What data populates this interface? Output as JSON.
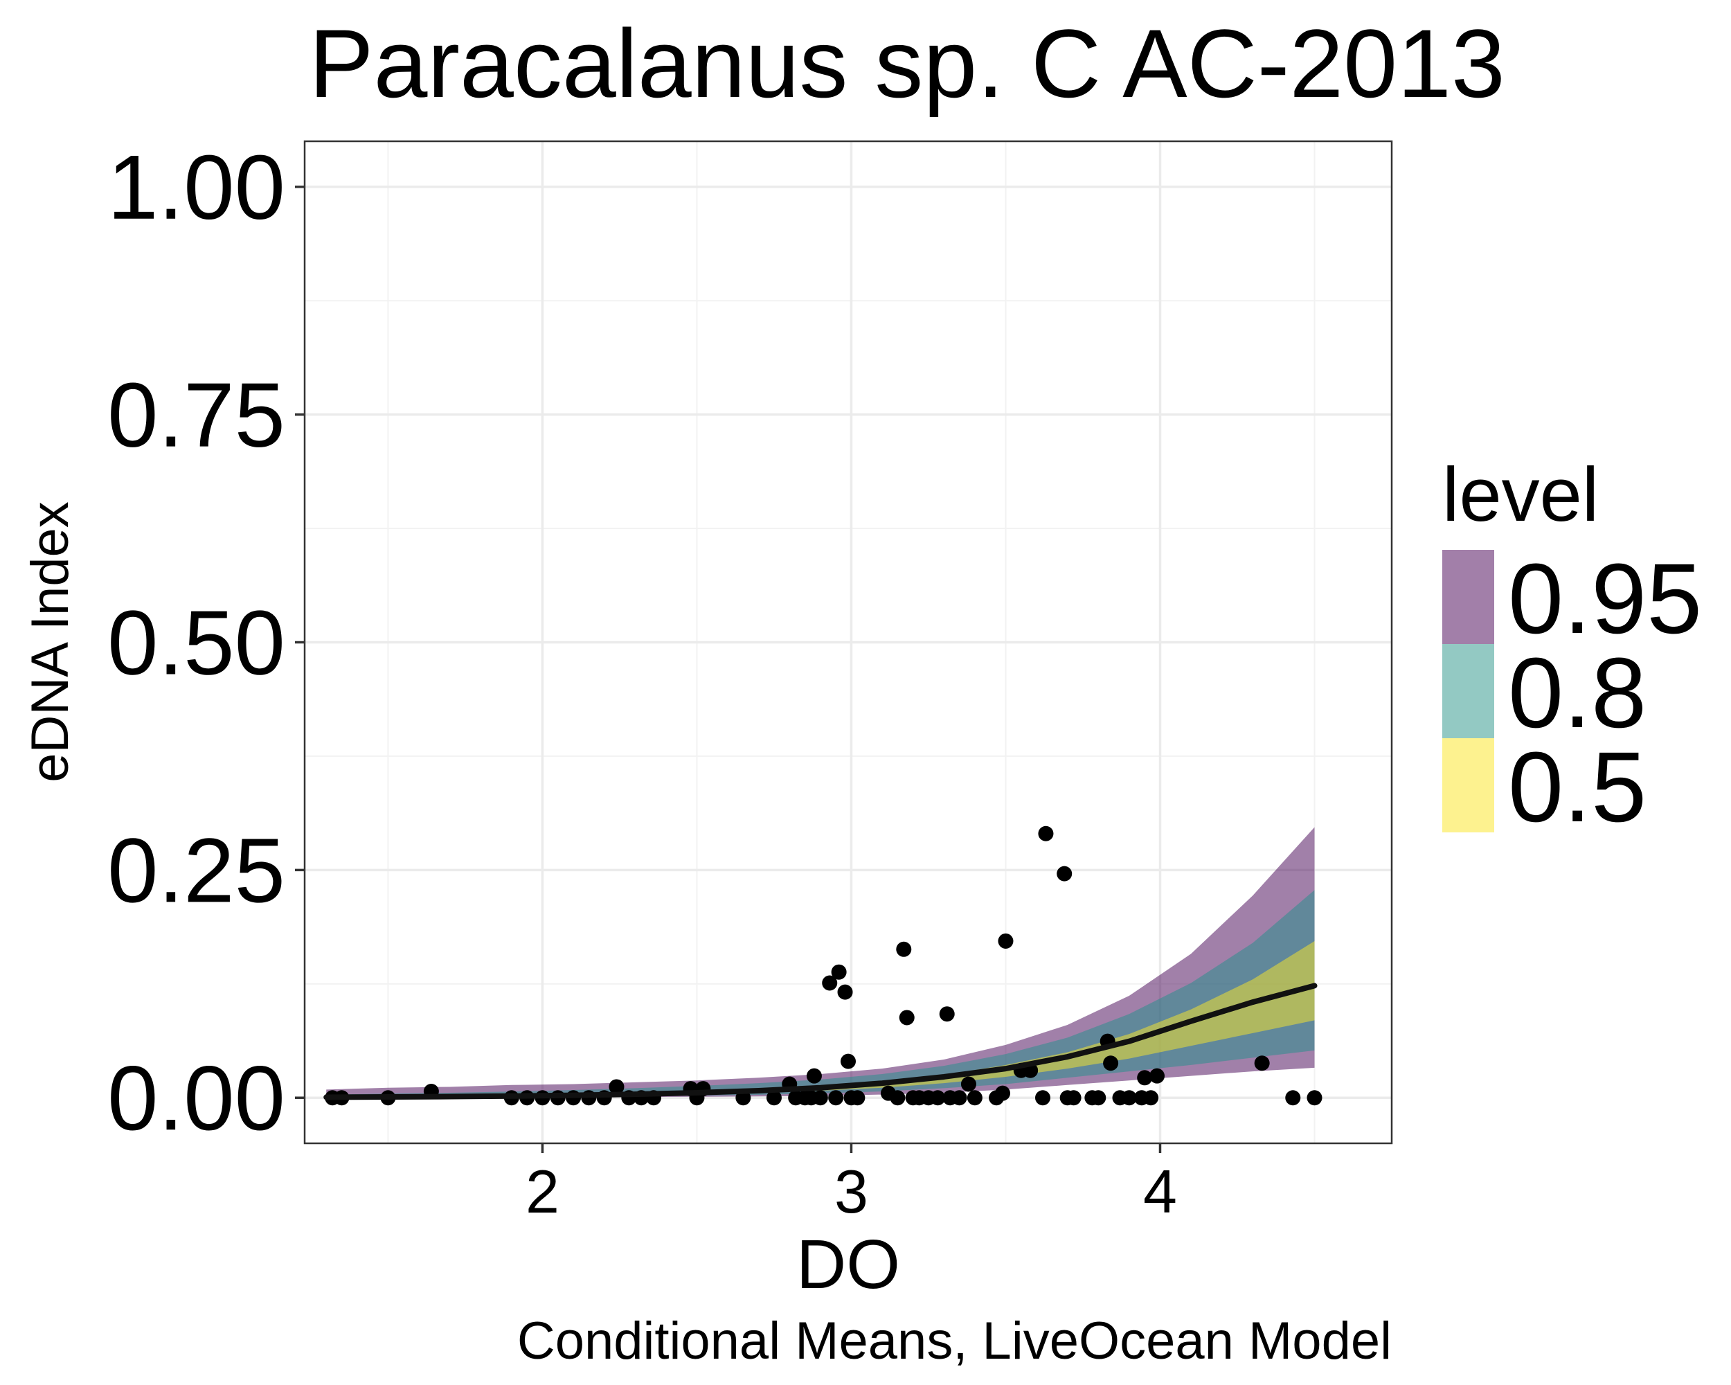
{
  "chart_data": {
    "type": "line",
    "title": "Paracalanus sp. C AC-2013",
    "xlabel": "DO",
    "ylabel": "eDNA Index",
    "caption": "Conditional Means, LiveOcean Model",
    "xlim": [
      1.23,
      4.75
    ],
    "ylim": [
      -0.05,
      1.05
    ],
    "x_ticks": [
      2,
      3,
      4
    ],
    "x_tick_labels": [
      "2",
      "3",
      "4"
    ],
    "y_ticks": [
      0,
      0.25,
      0.5,
      0.75,
      1.0
    ],
    "y_tick_labels": [
      "0.00",
      "0.25",
      "0.50",
      "0.75",
      "1.00"
    ],
    "grid": true,
    "legend": {
      "title": "level",
      "position": "right",
      "items": [
        {
          "label": "0.95",
          "color": "#a27fa9"
        },
        {
          "label": "0.8",
          "color": "#93c9c3"
        },
        {
          "label": "0.5",
          "color": "#fdf28f"
        }
      ]
    },
    "colors": {
      "band_95": "#440154",
      "band_80": "#21908c",
      "band_50": "#fde725",
      "line": "#111111",
      "points": "#000000"
    },
    "mean_line": {
      "x": [
        1.3,
        1.5,
        1.7,
        1.9,
        2.1,
        2.3,
        2.5,
        2.7,
        2.9,
        3.1,
        3.3,
        3.5,
        3.7,
        3.9,
        4.1,
        4.3,
        4.5
      ],
      "y": [
        0.0006,
        0.0009,
        0.0013,
        0.0019,
        0.0027,
        0.0039,
        0.0055,
        0.0078,
        0.011,
        0.016,
        0.023,
        0.032,
        0.045,
        0.062,
        0.084,
        0.105,
        0.123
      ]
    },
    "intervals": [
      {
        "level": "0.95",
        "lower": [
          0.0,
          0.0001,
          0.0002,
          0.0003,
          0.0005,
          0.0008,
          0.0011,
          0.0015,
          0.0021,
          0.0035,
          0.0055,
          0.009,
          0.014,
          0.019,
          0.024,
          0.029,
          0.033
        ],
        "upper": [
          0.009,
          0.011,
          0.012,
          0.014,
          0.015,
          0.017,
          0.019,
          0.022,
          0.026,
          0.032,
          0.042,
          0.058,
          0.08,
          0.112,
          0.158,
          0.222,
          0.297
        ]
      },
      {
        "level": "0.8",
        "lower": [
          0.0002,
          0.0003,
          0.0005,
          0.0007,
          0.0011,
          0.0016,
          0.0023,
          0.0033,
          0.0048,
          0.007,
          0.0105,
          0.015,
          0.022,
          0.029,
          0.036,
          0.044,
          0.052
        ],
        "upper": [
          0.0035,
          0.0045,
          0.0055,
          0.0068,
          0.0085,
          0.0105,
          0.013,
          0.016,
          0.02,
          0.026,
          0.035,
          0.048,
          0.066,
          0.092,
          0.126,
          0.17,
          0.228
        ]
      },
      {
        "level": "0.5",
        "lower": [
          0.0004,
          0.0006,
          0.0009,
          0.0013,
          0.0019,
          0.0027,
          0.0038,
          0.0055,
          0.0078,
          0.011,
          0.016,
          0.023,
          0.032,
          0.043,
          0.057,
          0.071,
          0.085
        ],
        "upper": [
          0.0012,
          0.0016,
          0.0021,
          0.0028,
          0.0037,
          0.0049,
          0.0066,
          0.009,
          0.0125,
          0.0175,
          0.025,
          0.036,
          0.05,
          0.07,
          0.097,
          0.13,
          0.172
        ]
      }
    ],
    "points": [
      [
        1.32,
        0
      ],
      [
        1.35,
        0
      ],
      [
        1.5,
        0
      ],
      [
        1.64,
        0.007
      ],
      [
        1.9,
        0
      ],
      [
        1.95,
        0
      ],
      [
        2.0,
        0
      ],
      [
        2.05,
        0
      ],
      [
        2.1,
        0
      ],
      [
        2.15,
        0
      ],
      [
        2.2,
        0
      ],
      [
        2.24,
        0.012
      ],
      [
        2.28,
        0
      ],
      [
        2.32,
        0
      ],
      [
        2.36,
        0
      ],
      [
        2.48,
        0.01
      ],
      [
        2.5,
        0
      ],
      [
        2.52,
        0.01
      ],
      [
        2.65,
        0
      ],
      [
        2.75,
        0
      ],
      [
        2.8,
        0.015
      ],
      [
        2.82,
        0
      ],
      [
        2.85,
        0
      ],
      [
        2.87,
        0
      ],
      [
        2.88,
        0.024
      ],
      [
        2.9,
        0
      ],
      [
        2.93,
        0.126
      ],
      [
        2.95,
        0
      ],
      [
        2.96,
        0.138
      ],
      [
        2.98,
        0.116
      ],
      [
        2.99,
        0.04
      ],
      [
        3.0,
        0
      ],
      [
        3.02,
        0
      ],
      [
        3.12,
        0.005
      ],
      [
        3.15,
        0
      ],
      [
        3.17,
        0.163
      ],
      [
        3.18,
        0.088
      ],
      [
        3.2,
        0
      ],
      [
        3.22,
        0
      ],
      [
        3.25,
        0
      ],
      [
        3.28,
        0
      ],
      [
        3.31,
        0.092
      ],
      [
        3.32,
        0
      ],
      [
        3.35,
        0
      ],
      [
        3.38,
        0.015
      ],
      [
        3.4,
        0
      ],
      [
        3.47,
        0
      ],
      [
        3.49,
        0.005
      ],
      [
        3.5,
        0.172
      ],
      [
        3.55,
        0.03
      ],
      [
        3.58,
        0.03
      ],
      [
        3.62,
        0
      ],
      [
        3.63,
        0.29
      ],
      [
        3.69,
        0.246
      ],
      [
        3.7,
        0
      ],
      [
        3.72,
        0
      ],
      [
        3.78,
        0
      ],
      [
        3.8,
        0
      ],
      [
        3.83,
        0.062
      ],
      [
        3.84,
        0.038
      ],
      [
        3.87,
        0
      ],
      [
        3.9,
        0
      ],
      [
        3.94,
        0
      ],
      [
        3.95,
        0.022
      ],
      [
        3.97,
        0
      ],
      [
        3.99,
        0.024
      ],
      [
        4.33,
        0.038
      ],
      [
        4.43,
        0
      ],
      [
        4.5,
        0
      ]
    ]
  }
}
